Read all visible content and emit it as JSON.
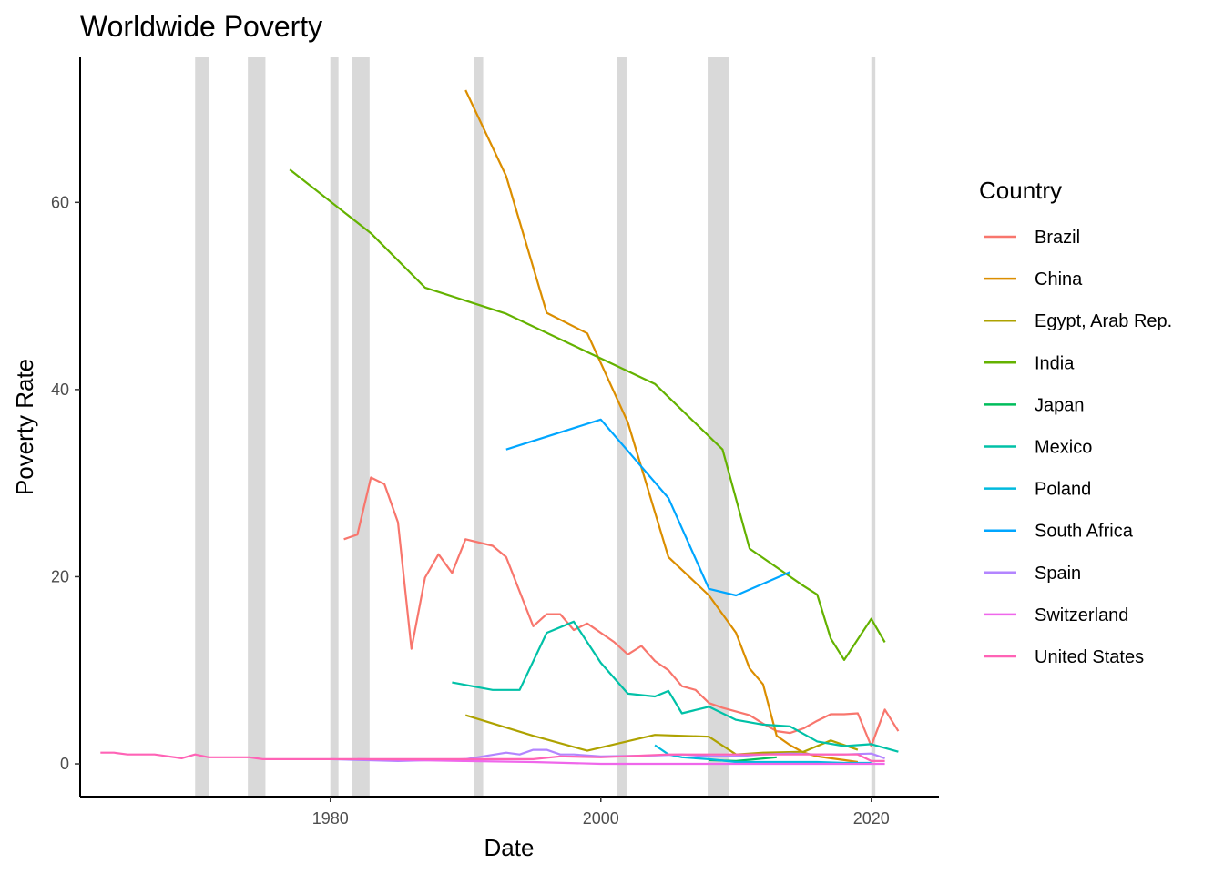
{
  "chart_data": {
    "type": "line",
    "title": "Worldwide Poverty",
    "xlabel": "Date",
    "ylabel": "Poverty Rate",
    "xlim": [
      1961.5,
      2025
    ],
    "ylim": [
      -3.5,
      75.5
    ],
    "x_ticks": [
      1980,
      2000,
      2020
    ],
    "y_ticks": [
      0,
      20,
      40,
      60
    ],
    "grid": false,
    "recession_bands": [
      [
        1970.0,
        1971.0
      ],
      [
        1973.9,
        1975.2
      ],
      [
        1980.0,
        1980.6
      ],
      [
        1981.6,
        1982.9
      ],
      [
        1990.6,
        1991.3
      ],
      [
        2001.2,
        2001.9
      ],
      [
        2007.9,
        2009.5
      ],
      [
        2020.0,
        2020.3
      ]
    ],
    "legend": {
      "title": "Country",
      "position": "right"
    },
    "series": [
      {
        "name": "Brazil",
        "color": "#F8766D",
        "points": [
          [
            1981,
            24.0
          ],
          [
            1982,
            24.5
          ],
          [
            1983,
            30.6
          ],
          [
            1984,
            29.9
          ],
          [
            1985,
            25.8
          ],
          [
            1986,
            12.3
          ],
          [
            1987,
            19.9
          ],
          [
            1988,
            22.4
          ],
          [
            1989,
            20.4
          ],
          [
            1990,
            24.0
          ],
          [
            1992,
            23.3
          ],
          [
            1993,
            22.1
          ],
          [
            1995,
            14.7
          ],
          [
            1996,
            16.0
          ],
          [
            1997,
            16.0
          ],
          [
            1998,
            14.3
          ],
          [
            1999,
            15.0
          ],
          [
            2001,
            13.0
          ],
          [
            2002,
            11.7
          ],
          [
            2003,
            12.6
          ],
          [
            2004,
            11.0
          ],
          [
            2005,
            10.0
          ],
          [
            2006,
            8.3
          ],
          [
            2007,
            7.9
          ],
          [
            2008,
            6.5
          ],
          [
            2009,
            6.0
          ],
          [
            2011,
            5.2
          ],
          [
            2012,
            4.3
          ],
          [
            2013,
            3.5
          ],
          [
            2014,
            3.3
          ],
          [
            2015,
            3.8
          ],
          [
            2016,
            4.6
          ],
          [
            2017,
            5.3
          ],
          [
            2018,
            5.3
          ],
          [
            2019,
            5.4
          ],
          [
            2020,
            1.9
          ],
          [
            2021,
            5.8
          ],
          [
            2022,
            3.5
          ]
        ]
      },
      {
        "name": "China",
        "color": "#DB8E00",
        "points": [
          [
            1990,
            72.0
          ],
          [
            1993,
            62.8
          ],
          [
            1996,
            48.2
          ],
          [
            1999,
            46.0
          ],
          [
            2002,
            36.5
          ],
          [
            2005,
            22.1
          ],
          [
            2008,
            18.0
          ],
          [
            2010,
            14.0
          ],
          [
            2011,
            10.2
          ],
          [
            2012,
            8.5
          ],
          [
            2013,
            3.0
          ],
          [
            2014,
            2.0
          ],
          [
            2015,
            1.2
          ],
          [
            2016,
            0.8
          ],
          [
            2017,
            0.6
          ],
          [
            2018,
            0.4
          ],
          [
            2019,
            0.2
          ]
        ]
      },
      {
        "name": "Egypt, Arab Rep.",
        "color": "#AEA200",
        "points": [
          [
            1990,
            5.2
          ],
          [
            1995,
            3.0
          ],
          [
            1999,
            1.4
          ],
          [
            2004,
            3.1
          ],
          [
            2008,
            2.9
          ],
          [
            2010,
            1.0
          ],
          [
            2012,
            1.2
          ],
          [
            2015,
            1.3
          ],
          [
            2017,
            2.5
          ],
          [
            2019,
            1.5
          ]
        ]
      },
      {
        "name": "India",
        "color": "#64B200",
        "points": [
          [
            1977,
            63.5
          ],
          [
            1983,
            56.7
          ],
          [
            1987,
            50.9
          ],
          [
            1993,
            48.1
          ],
          [
            2004,
            40.6
          ],
          [
            2009,
            33.6
          ],
          [
            2011,
            23.0
          ],
          [
            2015,
            19.0
          ],
          [
            2016,
            18.1
          ],
          [
            2017,
            13.4
          ],
          [
            2018,
            11.1
          ],
          [
            2020,
            15.5
          ],
          [
            2021,
            13.0
          ]
        ]
      },
      {
        "name": "Japan",
        "color": "#00BD5C",
        "points": [
          [
            2008,
            0.4
          ],
          [
            2010,
            0.3
          ],
          [
            2013,
            0.7
          ]
        ]
      },
      {
        "name": "Mexico",
        "color": "#00C1A7",
        "points": [
          [
            1989,
            8.7
          ],
          [
            1992,
            7.9
          ],
          [
            1994,
            7.9
          ],
          [
            1996,
            14.0
          ],
          [
            1998,
            15.2
          ],
          [
            2000,
            10.8
          ],
          [
            2002,
            7.5
          ],
          [
            2004,
            7.2
          ],
          [
            2005,
            7.8
          ],
          [
            2006,
            5.4
          ],
          [
            2008,
            6.1
          ],
          [
            2010,
            4.7
          ],
          [
            2012,
            4.2
          ],
          [
            2014,
            4.0
          ],
          [
            2016,
            2.4
          ],
          [
            2018,
            1.9
          ],
          [
            2020,
            2.1
          ],
          [
            2022,
            1.3
          ]
        ]
      },
      {
        "name": "Poland",
        "color": "#00BADE",
        "points": [
          [
            2004,
            2.0
          ],
          [
            2005,
            1.0
          ],
          [
            2006,
            0.7
          ],
          [
            2008,
            0.5
          ],
          [
            2010,
            0.2
          ],
          [
            2012,
            0.2
          ],
          [
            2014,
            0.2
          ],
          [
            2016,
            0.2
          ],
          [
            2018,
            0.1
          ],
          [
            2020,
            0.1
          ]
        ]
      },
      {
        "name": "South Africa",
        "color": "#00A6FF",
        "points": [
          [
            1993,
            33.6
          ],
          [
            2000,
            36.8
          ],
          [
            2005,
            28.4
          ],
          [
            2008,
            18.7
          ],
          [
            2010,
            18.0
          ],
          [
            2014,
            20.5
          ]
        ]
      },
      {
        "name": "Spain",
        "color": "#B385FF",
        "points": [
          [
            1980,
            0.5
          ],
          [
            1985,
            0.3
          ],
          [
            1990,
            0.5
          ],
          [
            1993,
            1.2
          ],
          [
            1994,
            1.0
          ],
          [
            1995,
            1.5
          ],
          [
            1996,
            1.5
          ],
          [
            1997,
            1.0
          ],
          [
            1998,
            1.0
          ],
          [
            2000,
            0.8
          ],
          [
            2004,
            0.9
          ],
          [
            2006,
            1.0
          ],
          [
            2008,
            0.8
          ],
          [
            2010,
            0.8
          ],
          [
            2012,
            1.0
          ],
          [
            2014,
            1.1
          ],
          [
            2016,
            1.0
          ],
          [
            2018,
            1.0
          ],
          [
            2020,
            1.1
          ],
          [
            2021,
            0.6
          ]
        ]
      },
      {
        "name": "Switzerland",
        "color": "#EF67EB",
        "points": [
          [
            1982,
            0.5
          ],
          [
            1990,
            0.3
          ],
          [
            1995,
            0.2
          ],
          [
            2000,
            0.0
          ],
          [
            2005,
            0.0
          ],
          [
            2010,
            0.0
          ],
          [
            2015,
            0.0
          ],
          [
            2020,
            0.0
          ],
          [
            2021,
            0.0
          ]
        ]
      },
      {
        "name": "United States",
        "color": "#FF63B6",
        "points": [
          [
            1963,
            1.2
          ],
          [
            1964,
            1.2
          ],
          [
            1965,
            1.0
          ],
          [
            1966,
            1.0
          ],
          [
            1967,
            1.0
          ],
          [
            1969,
            0.6
          ],
          [
            1970,
            1.0
          ],
          [
            1971,
            0.7
          ],
          [
            1974,
            0.7
          ],
          [
            1975,
            0.5
          ],
          [
            1980,
            0.5
          ],
          [
            1985,
            0.5
          ],
          [
            1990,
            0.5
          ],
          [
            1995,
            0.5
          ],
          [
            1997,
            0.8
          ],
          [
            2000,
            0.7
          ],
          [
            2005,
            1.0
          ],
          [
            2010,
            1.0
          ],
          [
            2015,
            1.0
          ],
          [
            2019,
            1.0
          ],
          [
            2020,
            0.3
          ],
          [
            2021,
            0.3
          ]
        ]
      }
    ]
  }
}
